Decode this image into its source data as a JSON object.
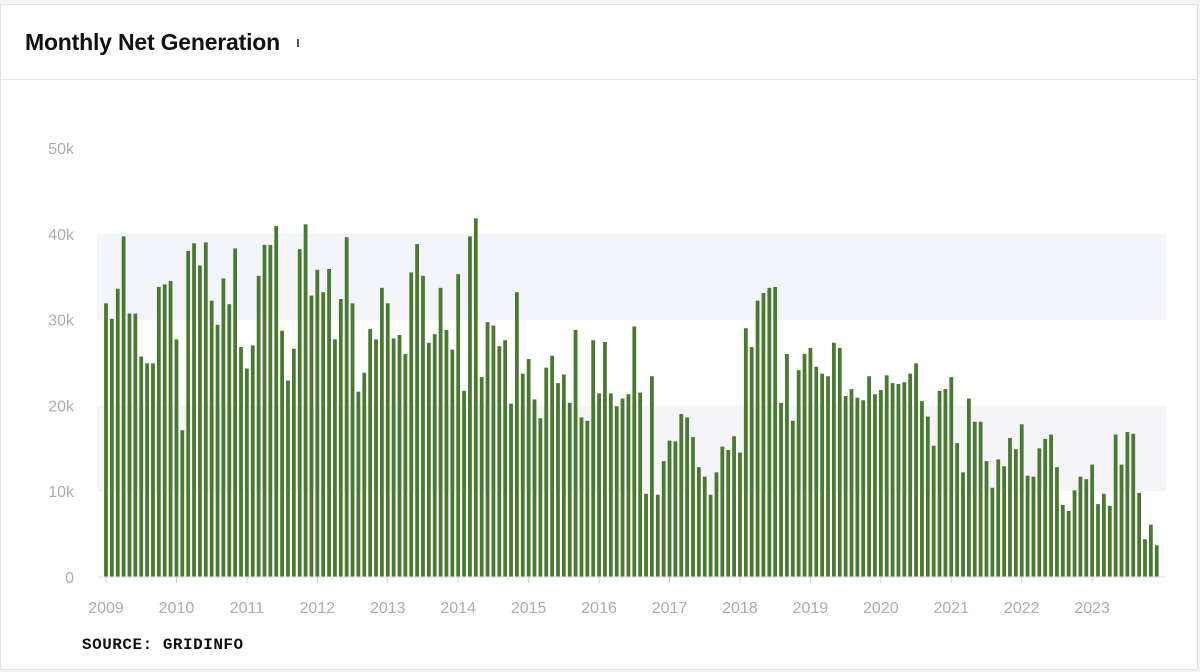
{
  "header": {
    "title": "Monthly Net Generation"
  },
  "source": "SOURCE: GRIDINFO",
  "colors": {
    "bar": "#4a7a32",
    "band_even": "#f5f5f7",
    "band_odd": "#f4f4fb",
    "axis_text": "#a9adb6"
  },
  "chart_data": {
    "type": "bar",
    "title": "Monthly Net Generation",
    "xlabel": "",
    "ylabel": "",
    "ylim": [
      0,
      50000
    ],
    "yticks": [
      {
        "value": 0,
        "label": "0"
      },
      {
        "value": 10000,
        "label": "10k"
      },
      {
        "value": 20000,
        "label": "20k"
      },
      {
        "value": 30000,
        "label": "30k"
      },
      {
        "value": 40000,
        "label": "40k"
      },
      {
        "value": 50000,
        "label": "50k"
      }
    ],
    "xticks": [
      "2009",
      "2010",
      "2011",
      "2012",
      "2013",
      "2014",
      "2015",
      "2016",
      "2017",
      "2018",
      "2019",
      "2020",
      "2021",
      "2022",
      "2023"
    ],
    "start_year": 2009,
    "values": [
      31900,
      30100,
      33600,
      39700,
      30700,
      30700,
      25700,
      24900,
      24900,
      33800,
      34100,
      34500,
      27700,
      17100,
      38000,
      38900,
      36300,
      39000,
      32200,
      29400,
      34800,
      31800,
      38300,
      26800,
      24300,
      27000,
      35100,
      38700,
      38700,
      40900,
      28700,
      22900,
      26600,
      38200,
      41100,
      32800,
      35800,
      33200,
      35900,
      27700,
      32400,
      39600,
      31900,
      21600,
      23800,
      28900,
      27700,
      33700,
      31900,
      27800,
      28200,
      26000,
      35500,
      38800,
      35100,
      27300,
      28300,
      33700,
      28800,
      26500,
      35300,
      21700,
      39700,
      41800,
      23300,
      29700,
      29300,
      26900,
      27600,
      20200,
      33200,
      23700,
      25400,
      20700,
      18500,
      24400,
      25800,
      22600,
      23600,
      20300,
      28800,
      18600,
      18200,
      27600,
      21400,
      27400,
      21400,
      19900,
      20800,
      21300,
      29200,
      21500,
      9700,
      23400,
      9600,
      13500,
      15900,
      15800,
      19000,
      18600,
      16300,
      12800,
      11700,
      9600,
      12200,
      15200,
      14800,
      16400,
      14500,
      29000,
      26800,
      32200,
      33100,
      33700,
      33800,
      20300,
      26000,
      18200,
      24100,
      26000,
      26700,
      24500,
      23700,
      23400,
      27300,
      26700,
      21100,
      21900,
      20900,
      20600,
      23400,
      21300,
      21800,
      23500,
      22600,
      22500,
      22700,
      23700,
      24900,
      20500,
      18700,
      15300,
      21700,
      21900,
      23300,
      15600,
      12200,
      20800,
      18100,
      18100,
      13500,
      10400,
      13700,
      12900,
      16200,
      14900,
      17800,
      11800,
      11700,
      15000,
      16100,
      16600,
      12800,
      8400,
      7700,
      10100,
      11700,
      11400,
      13100,
      8500,
      9700,
      8300,
      16600,
      13100,
      16900,
      16700,
      9800,
      4400,
      6100,
      3700
    ]
  }
}
